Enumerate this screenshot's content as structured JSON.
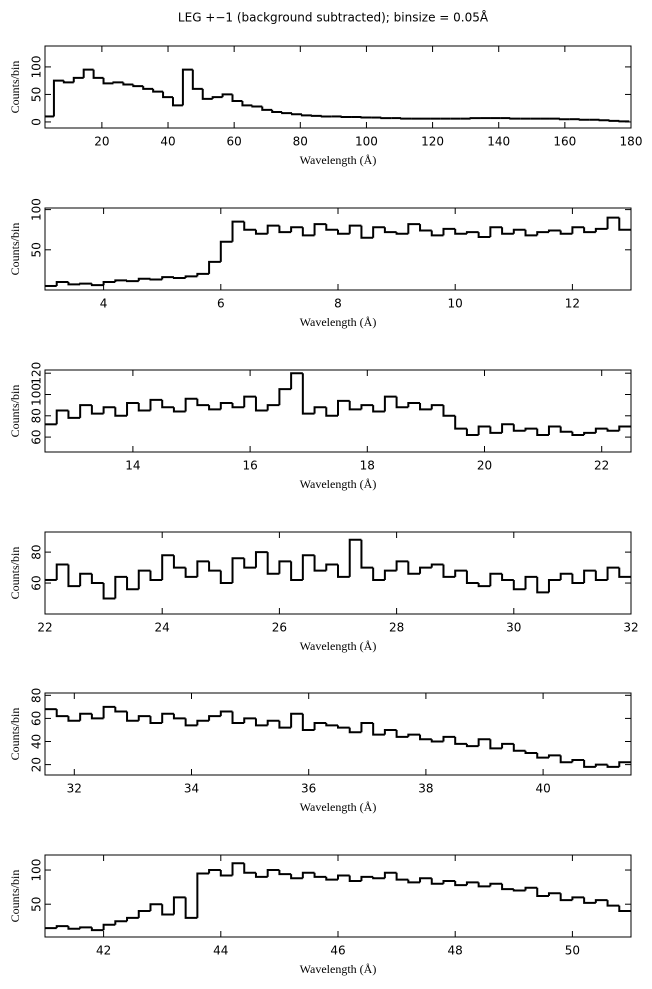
{
  "chart_data": [
    {
      "type": "step",
      "title": "LEG +−1 (background subtracted); binsize = 0.05Å",
      "xlabel": "Wavelength (Å)",
      "ylabel": "Counts/bin",
      "color": "#000000",
      "x": [
        4,
        7,
        10,
        13,
        16,
        19,
        22,
        25,
        28,
        31,
        34,
        37,
        40,
        43,
        46,
        49,
        52,
        55,
        58,
        61,
        64,
        67,
        70,
        73,
        76,
        79,
        82,
        85,
        88,
        91,
        94,
        97,
        100,
        103,
        106,
        109,
        112,
        115,
        118,
        121,
        124,
        127,
        130,
        133,
        136,
        139,
        142,
        145,
        148,
        151,
        154,
        157,
        160,
        163,
        166,
        169,
        172,
        175,
        178
      ],
      "values": [
        10,
        75,
        72,
        80,
        95,
        80,
        70,
        72,
        68,
        65,
        60,
        55,
        45,
        30,
        95,
        60,
        42,
        45,
        50,
        38,
        30,
        28,
        22,
        18,
        16,
        14,
        12,
        11,
        10,
        10,
        9,
        9,
        8,
        8,
        7,
        7,
        6,
        6,
        6,
        6,
        6,
        6,
        6,
        7,
        7,
        7,
        7,
        6,
        6,
        6,
        6,
        6,
        5,
        5,
        4,
        4,
        3,
        2,
        1
      ],
      "xlim": [
        2.8,
        180
      ],
      "xticks": [
        20,
        40,
        60,
        80,
        100,
        120,
        140,
        160,
        180
      ],
      "ylim": [
        -11,
        138
      ],
      "yticks": [
        0,
        50,
        100
      ]
    },
    {
      "type": "step",
      "xlabel": "Wavelength (Å)",
      "ylabel": "Counts/bin",
      "color": "#000000",
      "x": [
        3.1,
        3.3,
        3.5,
        3.7,
        3.9,
        4.1,
        4.3,
        4.5,
        4.7,
        4.9,
        5.1,
        5.3,
        5.5,
        5.7,
        5.9,
        6.1,
        6.3,
        6.5,
        6.7,
        6.9,
        7.1,
        7.3,
        7.5,
        7.7,
        7.9,
        8.1,
        8.3,
        8.5,
        8.7,
        8.9,
        9.1,
        9.3,
        9.5,
        9.7,
        9.9,
        10.1,
        10.3,
        10.5,
        10.7,
        10.9,
        11.1,
        11.3,
        11.5,
        11.7,
        11.9,
        12.1,
        12.3,
        12.5,
        12.7,
        12.9
      ],
      "values": [
        5,
        10,
        7,
        8,
        6,
        10,
        12,
        11,
        14,
        13,
        16,
        15,
        17,
        20,
        35,
        60,
        85,
        75,
        70,
        80,
        72,
        78,
        68,
        82,
        75,
        70,
        80,
        65,
        78,
        72,
        70,
        82,
        74,
        68,
        76,
        70,
        72,
        66,
        78,
        70,
        75,
        68,
        72,
        74,
        70,
        78,
        72,
        76,
        90,
        75
      ],
      "xlim": [
        3,
        13
      ],
      "xticks": [
        4,
        6,
        8,
        10,
        12
      ],
      "ylim": [
        0,
        102
      ],
      "yticks": [
        50,
        100
      ]
    },
    {
      "type": "step",
      "xlabel": "Wavelength (Å)",
      "ylabel": "Counts/bin",
      "color": "#000000",
      "x": [
        12.6,
        12.8,
        13.0,
        13.2,
        13.4,
        13.6,
        13.8,
        14.0,
        14.2,
        14.4,
        14.6,
        14.8,
        15.0,
        15.2,
        15.4,
        15.6,
        15.8,
        16.0,
        16.2,
        16.4,
        16.6,
        16.8,
        17.0,
        17.2,
        17.4,
        17.6,
        17.8,
        18.0,
        18.2,
        18.4,
        18.6,
        18.8,
        19.0,
        19.2,
        19.4,
        19.6,
        19.8,
        20.0,
        20.2,
        20.4,
        20.6,
        20.8,
        21.0,
        21.2,
        21.4,
        21.6,
        21.8,
        22.0,
        22.2,
        22.4
      ],
      "values": [
        72,
        85,
        78,
        90,
        82,
        88,
        80,
        92,
        85,
        95,
        88,
        84,
        96,
        90,
        86,
        92,
        88,
        98,
        85,
        90,
        105,
        120,
        82,
        88,
        80,
        94,
        86,
        90,
        84,
        98,
        88,
        92,
        86,
        90,
        80,
        68,
        62,
        70,
        64,
        72,
        66,
        68,
        62,
        70,
        65,
        62,
        64,
        68,
        66,
        70
      ],
      "xlim": [
        12.5,
        22.5
      ],
      "xticks": [
        14,
        16,
        18,
        20,
        22
      ],
      "ylim": [
        46,
        123
      ],
      "yticks": [
        60,
        80,
        100,
        120
      ]
    },
    {
      "type": "step",
      "xlabel": "Wavelength (Å)",
      "ylabel": "Counts/bin",
      "color": "#000000",
      "x": [
        22.1,
        22.3,
        22.5,
        22.7,
        22.9,
        23.1,
        23.3,
        23.5,
        23.7,
        23.9,
        24.1,
        24.3,
        24.5,
        24.7,
        24.9,
        25.1,
        25.3,
        25.5,
        25.7,
        25.9,
        26.1,
        26.3,
        26.5,
        26.7,
        26.9,
        27.1,
        27.3,
        27.5,
        27.7,
        27.9,
        28.1,
        28.3,
        28.5,
        28.7,
        28.9,
        29.1,
        29.3,
        29.5,
        29.7,
        29.9,
        30.1,
        30.3,
        30.5,
        30.7,
        30.9,
        31.1,
        31.3,
        31.5,
        31.7,
        31.9
      ],
      "values": [
        62,
        72,
        58,
        66,
        60,
        50,
        64,
        56,
        68,
        62,
        78,
        70,
        64,
        74,
        68,
        60,
        76,
        70,
        80,
        66,
        74,
        62,
        78,
        68,
        72,
        64,
        88,
        70,
        62,
        68,
        74,
        66,
        70,
        72,
        64,
        68,
        60,
        58,
        66,
        62,
        56,
        64,
        54,
        62,
        66,
        60,
        68,
        62,
        70,
        64
      ],
      "xlim": [
        22,
        32
      ],
      "xticks": [
        22,
        24,
        26,
        28,
        30,
        32
      ],
      "ylim": [
        40,
        93
      ],
      "yticks": [
        60,
        80
      ]
    },
    {
      "type": "step",
      "xlabel": "Wavelength (Å)",
      "ylabel": "Counts/bin",
      "color": "#000000",
      "x": [
        31.6,
        31.8,
        32.0,
        32.2,
        32.4,
        32.6,
        32.8,
        33.0,
        33.2,
        33.4,
        33.6,
        33.8,
        34.0,
        34.2,
        34.4,
        34.6,
        34.8,
        35.0,
        35.2,
        35.4,
        35.6,
        35.8,
        36.0,
        36.2,
        36.4,
        36.6,
        36.8,
        37.0,
        37.2,
        37.4,
        37.6,
        37.8,
        38.0,
        38.2,
        38.4,
        38.6,
        38.8,
        39.0,
        39.2,
        39.4,
        39.6,
        39.8,
        40.0,
        40.2,
        40.4,
        40.6,
        40.8,
        41.0,
        41.2,
        41.4
      ],
      "values": [
        68,
        62,
        58,
        64,
        60,
        70,
        66,
        58,
        62,
        56,
        64,
        60,
        54,
        58,
        62,
        66,
        56,
        60,
        54,
        58,
        52,
        64,
        50,
        56,
        54,
        52,
        48,
        56,
        46,
        50,
        44,
        46,
        42,
        40,
        44,
        38,
        36,
        42,
        34,
        38,
        32,
        30,
        26,
        28,
        22,
        24,
        18,
        20,
        18,
        22
      ],
      "xlim": [
        31.5,
        41.5
      ],
      "xticks": [
        32,
        34,
        36,
        38,
        40
      ],
      "ylim": [
        11,
        82
      ],
      "yticks": [
        20,
        40,
        60,
        80
      ]
    },
    {
      "type": "step",
      "xlabel": "Wavelength (Å)",
      "ylabel": "Counts/bin",
      "color": "#000000",
      "x": [
        41.1,
        41.3,
        41.5,
        41.7,
        41.9,
        42.1,
        42.3,
        42.5,
        42.7,
        42.9,
        43.1,
        43.3,
        43.5,
        43.7,
        43.9,
        44.1,
        44.3,
        44.5,
        44.7,
        44.9,
        45.1,
        45.3,
        45.5,
        45.7,
        45.9,
        46.1,
        46.3,
        46.5,
        46.7,
        46.9,
        47.1,
        47.3,
        47.5,
        47.7,
        47.9,
        48.1,
        48.3,
        48.5,
        48.7,
        48.9,
        49.1,
        49.3,
        49.5,
        49.7,
        49.9,
        50.1,
        50.3,
        50.5,
        50.7,
        50.9
      ],
      "values": [
        15,
        18,
        14,
        16,
        12,
        20,
        25,
        30,
        40,
        50,
        35,
        60,
        30,
        95,
        100,
        92,
        110,
        96,
        90,
        100,
        94,
        88,
        96,
        90,
        86,
        92,
        84,
        90,
        88,
        96,
        86,
        82,
        88,
        80,
        84,
        78,
        82,
        76,
        80,
        72,
        70,
        74,
        62,
        66,
        56,
        60,
        52,
        56,
        48,
        40
      ],
      "xlim": [
        41,
        51
      ],
      "xticks": [
        42,
        44,
        46,
        48,
        50
      ],
      "ylim": [
        2,
        122
      ],
      "yticks": [
        50,
        100
      ]
    }
  ]
}
